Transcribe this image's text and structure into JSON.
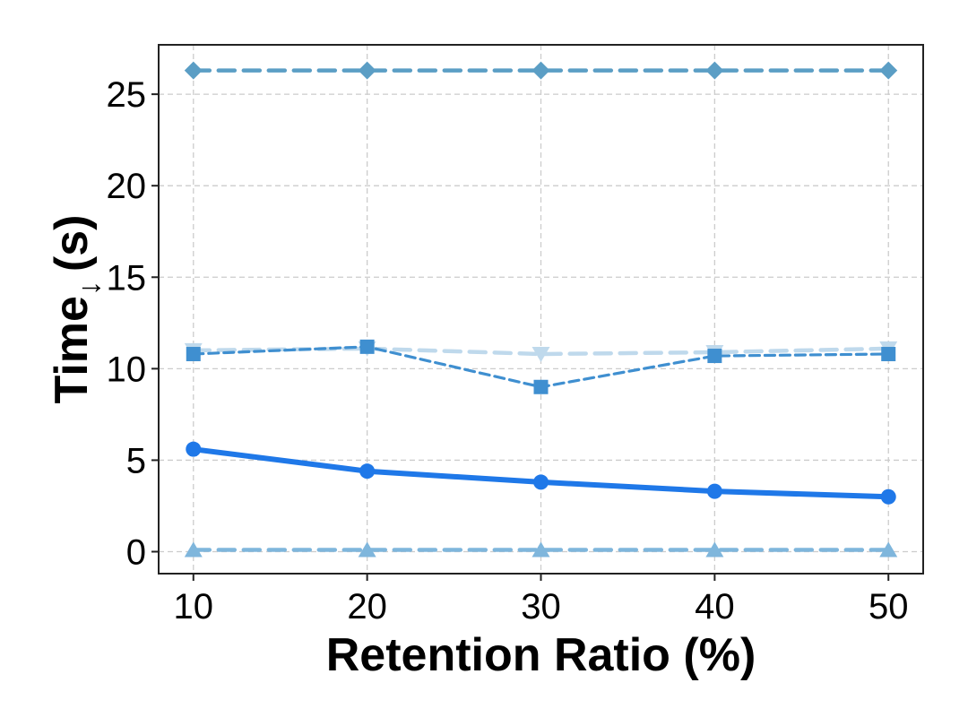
{
  "chart_data": {
    "type": "line",
    "title": "",
    "xlabel": "Retention Ratio (%)",
    "ylabel": "Time",
    "ylabel_arrow": "↓",
    "ylabel_unit": "(s)",
    "x": [
      10,
      20,
      30,
      40,
      50
    ],
    "xticks": [
      "10",
      "20",
      "30",
      "40",
      "50"
    ],
    "yticks": [
      "0",
      "5",
      "10",
      "15",
      "20",
      "25"
    ],
    "xlim": [
      8,
      52
    ],
    "ylim": [
      -1.2,
      27.7
    ],
    "grid": true,
    "series": [
      {
        "name": "series-diamond",
        "marker": "diamond",
        "line_style": "dashed",
        "color": "#5b9ec5",
        "values": [
          26.3,
          26.3,
          26.3,
          26.3,
          26.3
        ]
      },
      {
        "name": "series-triangle-down",
        "marker": "triangle-down",
        "line_style": "dashed",
        "color": "#bfd9ec",
        "values": [
          11.0,
          11.1,
          10.8,
          10.9,
          11.1
        ]
      },
      {
        "name": "series-square",
        "marker": "square",
        "line_style": "dashed",
        "color": "#3f8fd0",
        "values": [
          10.8,
          11.2,
          9.0,
          10.7,
          10.8
        ]
      },
      {
        "name": "series-circle",
        "marker": "circle",
        "line_style": "solid",
        "color": "#1f78e8",
        "values": [
          5.6,
          4.4,
          3.8,
          3.3,
          3.0
        ]
      },
      {
        "name": "series-triangle-up",
        "marker": "triangle-up",
        "line_style": "dashed",
        "color": "#7fb6dc",
        "values": [
          0.1,
          0.1,
          0.1,
          0.1,
          0.1
        ]
      }
    ]
  }
}
